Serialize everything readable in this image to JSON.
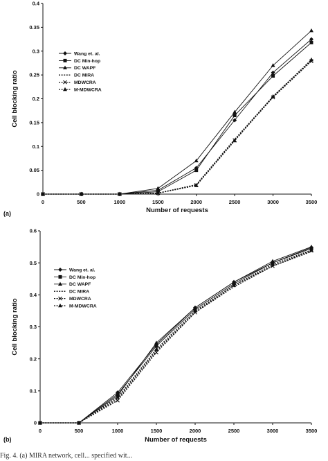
{
  "chart_data": [
    {
      "type": "line",
      "panel_label": "(a)",
      "xlabel": "Number of requests",
      "ylabel": "Cell blocking ratio",
      "x": [
        0,
        500,
        1000,
        1500,
        2000,
        2500,
        3000,
        3500
      ],
      "xticks": [
        "0",
        "500",
        "1000",
        "1500",
        "2000",
        "2500",
        "3000",
        "3500"
      ],
      "ylim": [
        0,
        0.4
      ],
      "yticks": [
        "0",
        "0.05",
        "0.1",
        "0.15",
        "0.2",
        "0.25",
        "0.3",
        "0.35",
        "0.4"
      ],
      "grid": false,
      "legend": "top-left",
      "series": [
        {
          "name": "Wang et. al.",
          "marker": "diamond",
          "dash": "solid",
          "values": [
            0,
            0,
            0,
            0.008,
            0.055,
            0.155,
            0.255,
            0.325
          ]
        },
        {
          "name": "DC Min-hop",
          "marker": "square",
          "dash": "solid",
          "values": [
            0,
            0,
            0,
            0.005,
            0.05,
            0.165,
            0.248,
            0.318
          ]
        },
        {
          "name": "DC WAPF",
          "marker": "triangle",
          "dash": "solid",
          "values": [
            0,
            0,
            0,
            0.012,
            0.07,
            0.172,
            0.27,
            0.343
          ]
        },
        {
          "name": "DC MIRA",
          "marker": "none",
          "dash": "dotted",
          "values": [
            0,
            0,
            0,
            0.002,
            0.02,
            0.115,
            0.205,
            0.28
          ]
        },
        {
          "name": "MDWCRA",
          "marker": "cross",
          "dash": "dotted",
          "values": [
            0,
            0,
            0,
            0.002,
            0.019,
            0.113,
            0.203,
            0.279
          ]
        },
        {
          "name": "M-MDWCRA",
          "marker": "triangle",
          "dash": "dotted",
          "values": [
            0,
            0,
            0,
            0.002,
            0.018,
            0.112,
            0.205,
            0.282
          ]
        }
      ]
    },
    {
      "type": "line",
      "panel_label": "(b)",
      "xlabel": "Number of requests",
      "ylabel": "Cell blocking ratio",
      "x": [
        0,
        500,
        1000,
        1500,
        2000,
        2500,
        3000,
        3500
      ],
      "xticks": [
        "0",
        "500",
        "1000",
        "1500",
        "2000",
        "2500",
        "3000",
        "3500"
      ],
      "ylim": [
        0,
        0.6
      ],
      "yticks": [
        "0",
        "0.1",
        "0.2",
        "0.3",
        "0.4",
        "0.5",
        "0.6"
      ],
      "grid": false,
      "legend": "top-left",
      "series": [
        {
          "name": "Wang et. al.",
          "marker": "diamond",
          "dash": "solid",
          "values": [
            0,
            0,
            0.095,
            0.245,
            0.36,
            0.44,
            0.5,
            0.548
          ]
        },
        {
          "name": "DC Min-hop",
          "marker": "square",
          "dash": "solid",
          "values": [
            0,
            0,
            0.09,
            0.24,
            0.355,
            0.435,
            0.5,
            0.545
          ]
        },
        {
          "name": "DC WAPF",
          "marker": "triangle",
          "dash": "solid",
          "values": [
            0,
            0,
            0.085,
            0.25,
            0.36,
            0.44,
            0.505,
            0.55
          ]
        },
        {
          "name": "DC MIRA",
          "marker": "none",
          "dash": "dotted",
          "values": [
            0,
            0,
            0.075,
            0.225,
            0.345,
            0.425,
            0.49,
            0.535
          ]
        },
        {
          "name": "MDWCRA",
          "marker": "cross",
          "dash": "dotted",
          "values": [
            0,
            0,
            0.07,
            0.22,
            0.345,
            0.43,
            0.49,
            0.538
          ]
        },
        {
          "name": "M-MDWCRA",
          "marker": "triangle",
          "dash": "dotted",
          "values": [
            0,
            0,
            0.08,
            0.23,
            0.35,
            0.43,
            0.495,
            0.54
          ]
        }
      ]
    }
  ],
  "caption": "Fig. 4. (a) MIRA network, cell... specified wit..."
}
